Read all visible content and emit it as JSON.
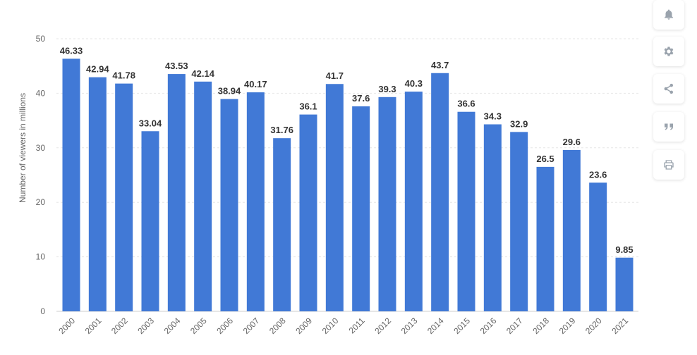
{
  "chart_data": {
    "type": "bar",
    "ylabel": "Number of viewers in millions",
    "ylim": [
      0,
      50
    ],
    "yticks": [
      0,
      10,
      20,
      30,
      40,
      50
    ],
    "grid": true,
    "categories": [
      "2000",
      "2001",
      "2002",
      "2003",
      "2004",
      "2005",
      "2006",
      "2007",
      "2008",
      "2009",
      "2010",
      "2011",
      "2012",
      "2013",
      "2014",
      "2015",
      "2016",
      "2017",
      "2018",
      "2019",
      "2020",
      "2021"
    ],
    "values": [
      46.33,
      42.94,
      41.78,
      33.04,
      43.53,
      42.14,
      38.94,
      40.17,
      31.76,
      36.1,
      41.7,
      37.6,
      39.3,
      40.3,
      43.7,
      36.6,
      34.3,
      32.9,
      26.5,
      29.6,
      23.6,
      9.85
    ],
    "value_labels": [
      "46.33",
      "42.94",
      "41.78",
      "33.04",
      "43.53",
      "42.14",
      "38.94",
      "40.17",
      "31.76",
      "36.1",
      "41.7",
      "37.6",
      "39.3",
      "40.3",
      "43.7",
      "36.6",
      "34.3",
      "32.9",
      "26.5",
      "29.6",
      "23.6",
      "9.85"
    ],
    "bar_color": "#4179d6"
  },
  "toolbar": {
    "icons": [
      "bell-icon",
      "gear-icon",
      "share-icon",
      "quote-icon",
      "print-icon"
    ],
    "icon_color": "#9aa3ad"
  }
}
